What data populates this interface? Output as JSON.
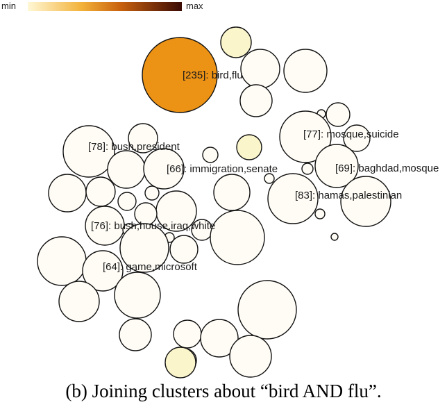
{
  "legend": {
    "min_label": "min",
    "max_label": "max",
    "color_min": "#fff8d6",
    "color_max": "#3a0a05"
  },
  "labels": {
    "bird_flu": "[235]: bird,flu",
    "mosque_suicide": "[77]: mosque,suicide",
    "bush_president": "[78]: bush,president",
    "immigration_senate": "[66]: immigration,senate",
    "baghdad_mosque": "[69]: baghdad,mosque",
    "hamas_palestinian": "[83]: hamas,palestinian",
    "bush_house_iraq_white": "[76]: bush,house,iraq,white",
    "game_microsoft": "[64]: game,microsoft"
  },
  "fills": {
    "default": "#fffcf6",
    "light_yellow": "#fbf5cc",
    "highlight": "#ec9215",
    "stroke": "#111111"
  },
  "caption": "(b) Joining clusters about “bird AND flu”."
}
